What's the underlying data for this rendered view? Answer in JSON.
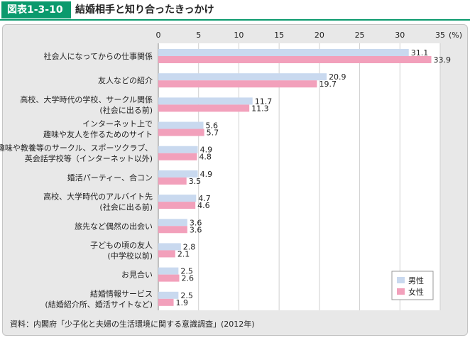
{
  "figure": {
    "label": "図表1-3-10",
    "title": "結婚相手と知り合ったきっかけ"
  },
  "source": "資料：内閣府「少子化と夫婦の生活環境に関する意識調査」(2012年)",
  "colors": {
    "male": "#c9d9ef",
    "female": "#f2a0bb",
    "accent": "#0b9a6d"
  },
  "chart_data": {
    "type": "bar",
    "orientation": "horizontal",
    "unit_label": "(%)",
    "xlim": [
      0,
      35
    ],
    "ticks": [
      "0",
      "5",
      "10",
      "15",
      "20",
      "25",
      "30",
      "35"
    ],
    "grid": true,
    "legend_position": "bottom-right",
    "categories": [
      [
        "社会人になってからの仕事関係"
      ],
      [
        "友人などの紹介"
      ],
      [
        "高校、大学時代の学校、サークル関係",
        "(社会に出る前)"
      ],
      [
        "インターネット上で",
        "趣味や友人を作るためのサイト"
      ],
      [
        "趣味や教養等のサークル、スポーツクラブ、",
        "英会話学校等（インターネット以外)"
      ],
      [
        "婚活パーティー、合コン"
      ],
      [
        "高校、大学時代のアルバイト先",
        "(社会に出る前)"
      ],
      [
        "旅先など偶然の出会い"
      ],
      [
        "子どもの頃の友人",
        "(中学校以前)"
      ],
      [
        "お見合い"
      ],
      [
        "結婚情報サービス",
        "(結婚紹介所、婚活サイトなど)"
      ]
    ],
    "series": [
      {
        "name": "男性",
        "values": [
          31.1,
          20.9,
          11.7,
          5.6,
          4.9,
          4.9,
          4.7,
          3.6,
          2.8,
          2.5,
          2.5
        ]
      },
      {
        "name": "女性",
        "values": [
          33.9,
          19.7,
          11.3,
          5.7,
          4.8,
          3.5,
          4.6,
          3.6,
          2.1,
          2.6,
          1.9
        ]
      }
    ]
  }
}
